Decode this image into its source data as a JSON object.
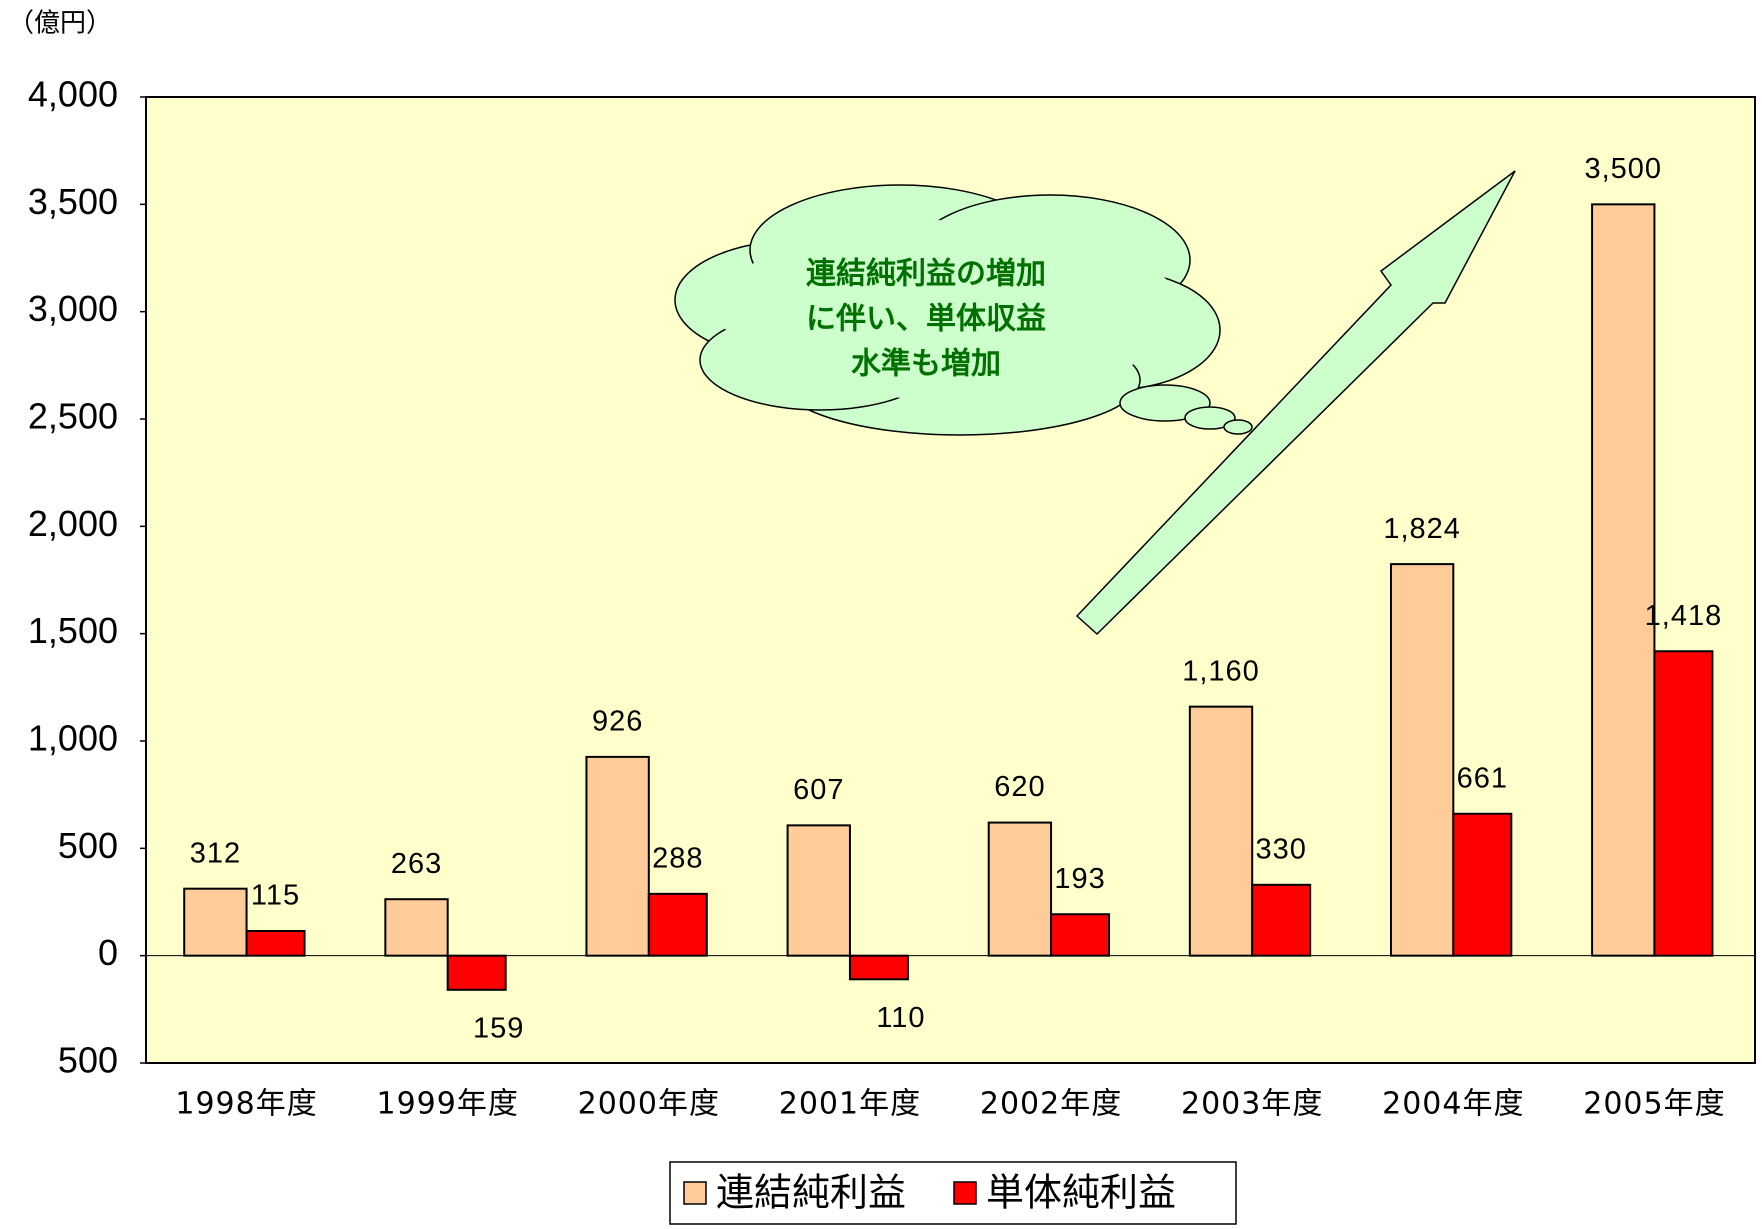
{
  "chart_data": {
    "type": "bar",
    "unit_label": "（億円）",
    "categories": [
      "1998年度",
      "1999年度",
      "2000年度",
      "2001年度",
      "2002年度",
      "2003年度",
      "2004年度",
      "2005年度"
    ],
    "series": [
      {
        "name": "連結純利益",
        "color": "#ffcc99",
        "values": [
          312,
          263,
          926,
          607,
          620,
          1160,
          1824,
          3500
        ],
        "value_labels": [
          "312",
          "263",
          "926",
          "607",
          "620",
          "1,160",
          "1,824",
          "3,500"
        ]
      },
      {
        "name": "単体純利益",
        "color": "#ff0000",
        "values": [
          115,
          -159,
          288,
          -110,
          193,
          330,
          661,
          1418
        ],
        "value_labels": [
          "115",
          "159",
          "288",
          "110",
          "193",
          "330",
          "661",
          "1,418"
        ]
      }
    ],
    "ylim": [
      -500,
      4000
    ],
    "yticks": [
      {
        "value": -500,
        "label": "500"
      },
      0,
      500,
      {
        "value": 1000,
        "label": "1,000"
      },
      {
        "value": 1500,
        "label": "1,500"
      },
      {
        "value": 2000,
        "label": "2,000"
      },
      {
        "value": 2500,
        "label": "2,500"
      },
      {
        "value": 3000,
        "label": "3,000"
      },
      {
        "value": 3500,
        "label": "3,500"
      },
      {
        "value": 4000,
        "label": "4,000"
      }
    ],
    "annotation": [
      "連結純利益の増加",
      "に伴い、単体収益",
      "水準も増加"
    ],
    "plot_background": "#ffffcc"
  }
}
